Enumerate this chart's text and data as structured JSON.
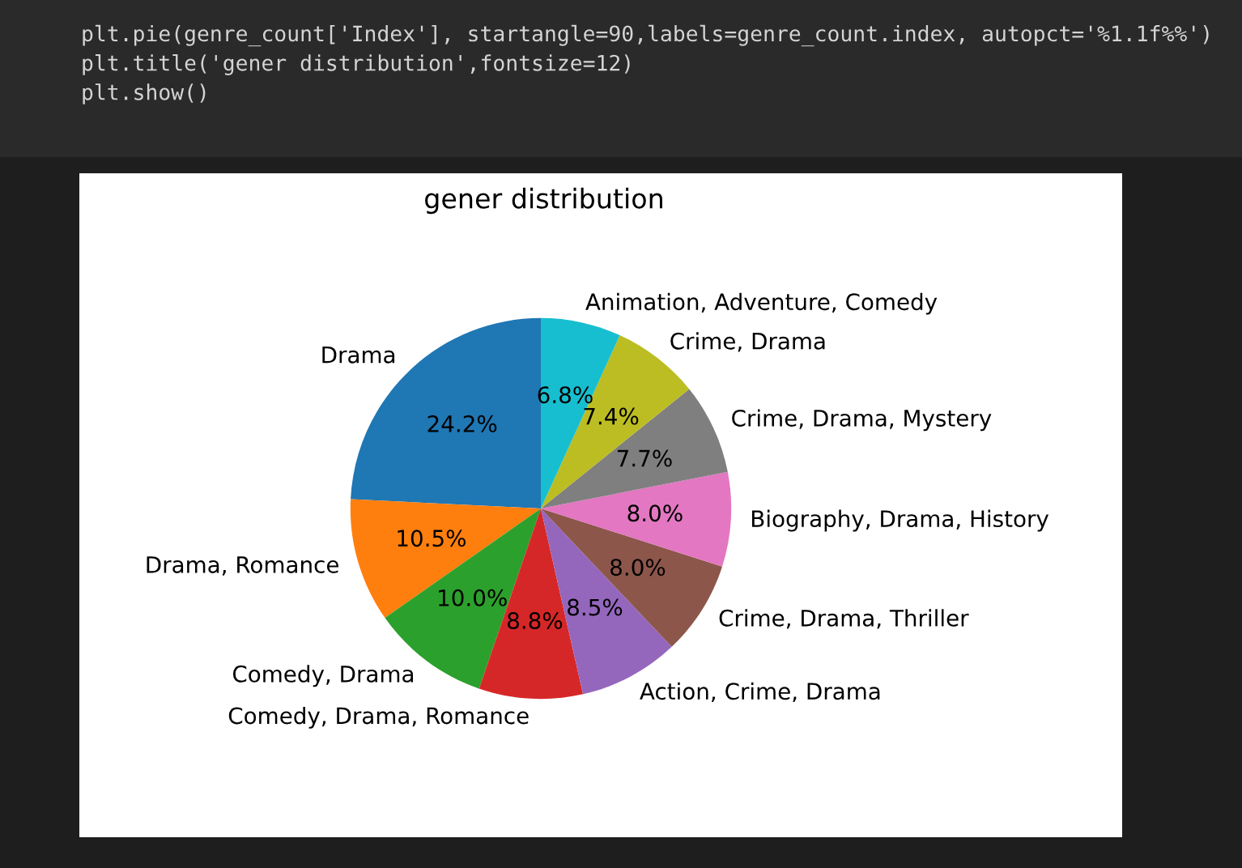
{
  "chart_data": {
    "type": "pie",
    "title": "gener distribution",
    "categories": [
      "Drama",
      "Drama, Romance",
      "Comedy, Drama",
      "Comedy, Drama, Romance",
      "Action, Crime, Drama",
      "Crime, Drama, Thriller",
      "Biography, Drama, History",
      "Crime, Drama, Mystery",
      "Crime, Drama",
      "Animation, Adventure, Comedy"
    ],
    "values": [
      24.2,
      10.5,
      10.0,
      8.8,
      8.5,
      8.0,
      8.0,
      7.7,
      7.4,
      6.8
    ],
    "value_labels": [
      "24.2%",
      "10.5%",
      "10.0%",
      "8.8%",
      "8.5%",
      "8.0%",
      "8.0%",
      "7.7%",
      "7.4%",
      "6.8%"
    ],
    "colors": [
      "#1f77b4",
      "#ff7f0e",
      "#2ca02c",
      "#d62728",
      "#9467bd",
      "#8c564b",
      "#e377c2",
      "#7f7f7f",
      "#bcbd22",
      "#17becf"
    ],
    "annotations": [
      "plt.pie(genre_count['Index'], startangle=90,labels=genre_count.index, autopct='%1.1f%%')",
      "plt.title('gener distribution',fontsize=12)",
      "plt.show()"
    ]
  }
}
